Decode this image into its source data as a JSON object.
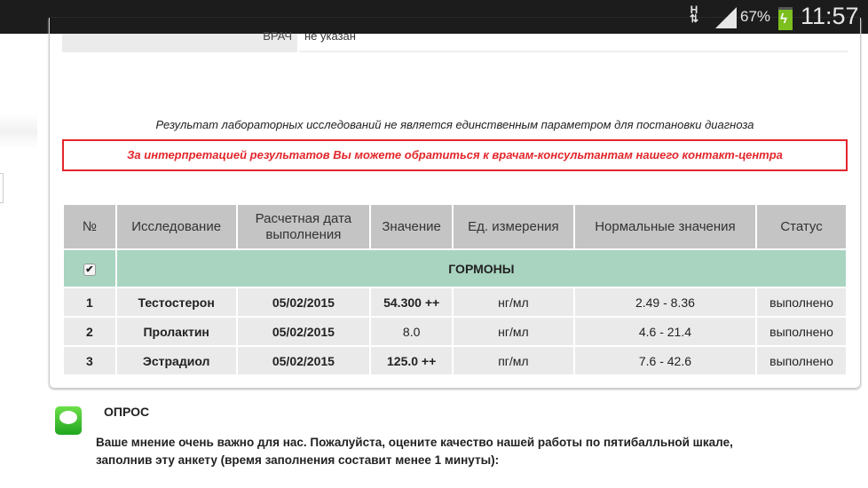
{
  "status_bar": {
    "network": "H",
    "battery": "67%",
    "time": "11:57"
  },
  "doctor": {
    "label": "ВРАЧ",
    "value": "не указан"
  },
  "disclaimer": "Результат лабораторных исследований не является единственным параметром для постановки диагноза",
  "alert": "За интерпретацией результатов Вы можете обратиться к врачам-консультантам нашего контакт-центра",
  "table": {
    "headers": [
      "№",
      "Исследование",
      "Расчетная дата выполнения",
      "Значение",
      "Ед. измерения",
      "Нормальные значения",
      "Статус"
    ],
    "group": {
      "name": "ГОРМОНЫ",
      "checked": true
    },
    "rows": [
      {
        "n": "1",
        "test": "Тестостерон",
        "date": "05/02/2015",
        "value": "54.300 ++",
        "unit": "нг/мл",
        "range": "2.49 - 8.36",
        "status": "выполнено"
      },
      {
        "n": "2",
        "test": "Пролактин",
        "date": "05/02/2015",
        "value": "8.0",
        "unit": "нг/мл",
        "range": "4.6 - 21.4",
        "status": "выполнено"
      },
      {
        "n": "3",
        "test": "Эстрадиол",
        "date": "05/02/2015",
        "value": "125.0 ++",
        "unit": "пг/мл",
        "range": "7.6 - 42.6",
        "status": "выполнено"
      }
    ]
  },
  "poll": {
    "title": "ОПРОС",
    "text": "Ваше мнение очень важно для нас. Пожалуйста, оцените качество нашей работы по пятибалльной шкале, заполнив эту анкету (время заполнения составит менее 1 минуты):"
  }
}
